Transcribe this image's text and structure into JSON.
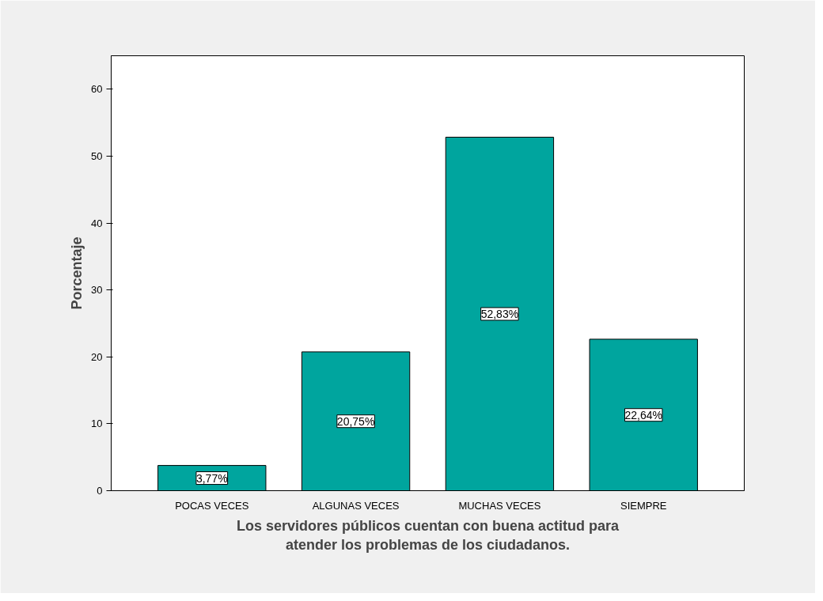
{
  "chart_data": {
    "type": "bar",
    "xlabel": "Los servidores públicos cuentan con buena actitud para\natender los problemas de los ciudadanos.",
    "ylabel": "Porcentaje",
    "categories": [
      "POCAS VECES",
      "ALGUNAS VECES",
      "MUCHAS VECES",
      "SIEMPRE"
    ],
    "values": [
      3.77,
      20.75,
      52.83,
      22.64
    ],
    "value_labels": [
      "3,77%",
      "20,75%",
      "52,83%",
      "22,64%"
    ],
    "color": "#00a59e",
    "ylim": [
      0,
      65
    ],
    "yticks": [
      0,
      10,
      20,
      30,
      40,
      50,
      60
    ],
    "grid": false
  }
}
